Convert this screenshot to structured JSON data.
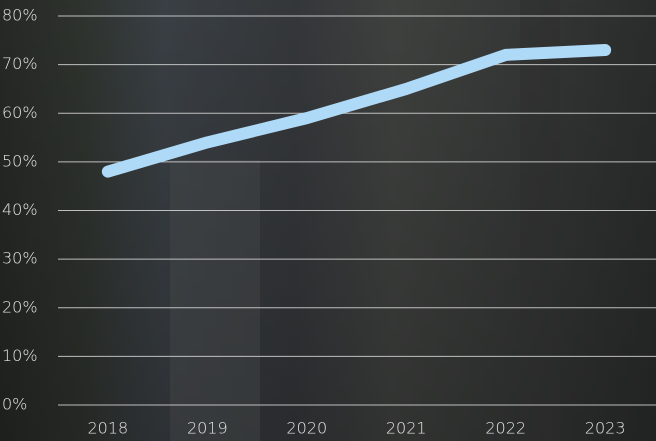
{
  "chart_data": {
    "type": "line",
    "categories": [
      "2018",
      "2019",
      "2020",
      "2021",
      "2022",
      "2023"
    ],
    "values": [
      48,
      54,
      59,
      65,
      72,
      73
    ],
    "color": "#aed9f7",
    "ylim": [
      0,
      80
    ],
    "yticks": [
      {
        "value": 0,
        "label": "0%"
      },
      {
        "value": 10,
        "label": "10%"
      },
      {
        "value": 20,
        "label": "20%"
      },
      {
        "value": 30,
        "label": "30%"
      },
      {
        "value": 40,
        "label": "40%"
      },
      {
        "value": 50,
        "label": "50%"
      },
      {
        "value": 60,
        "label": "60%"
      },
      {
        "value": 70,
        "label": "70%"
      },
      {
        "value": 80,
        "label": "80%"
      }
    ],
    "grid": true
  }
}
